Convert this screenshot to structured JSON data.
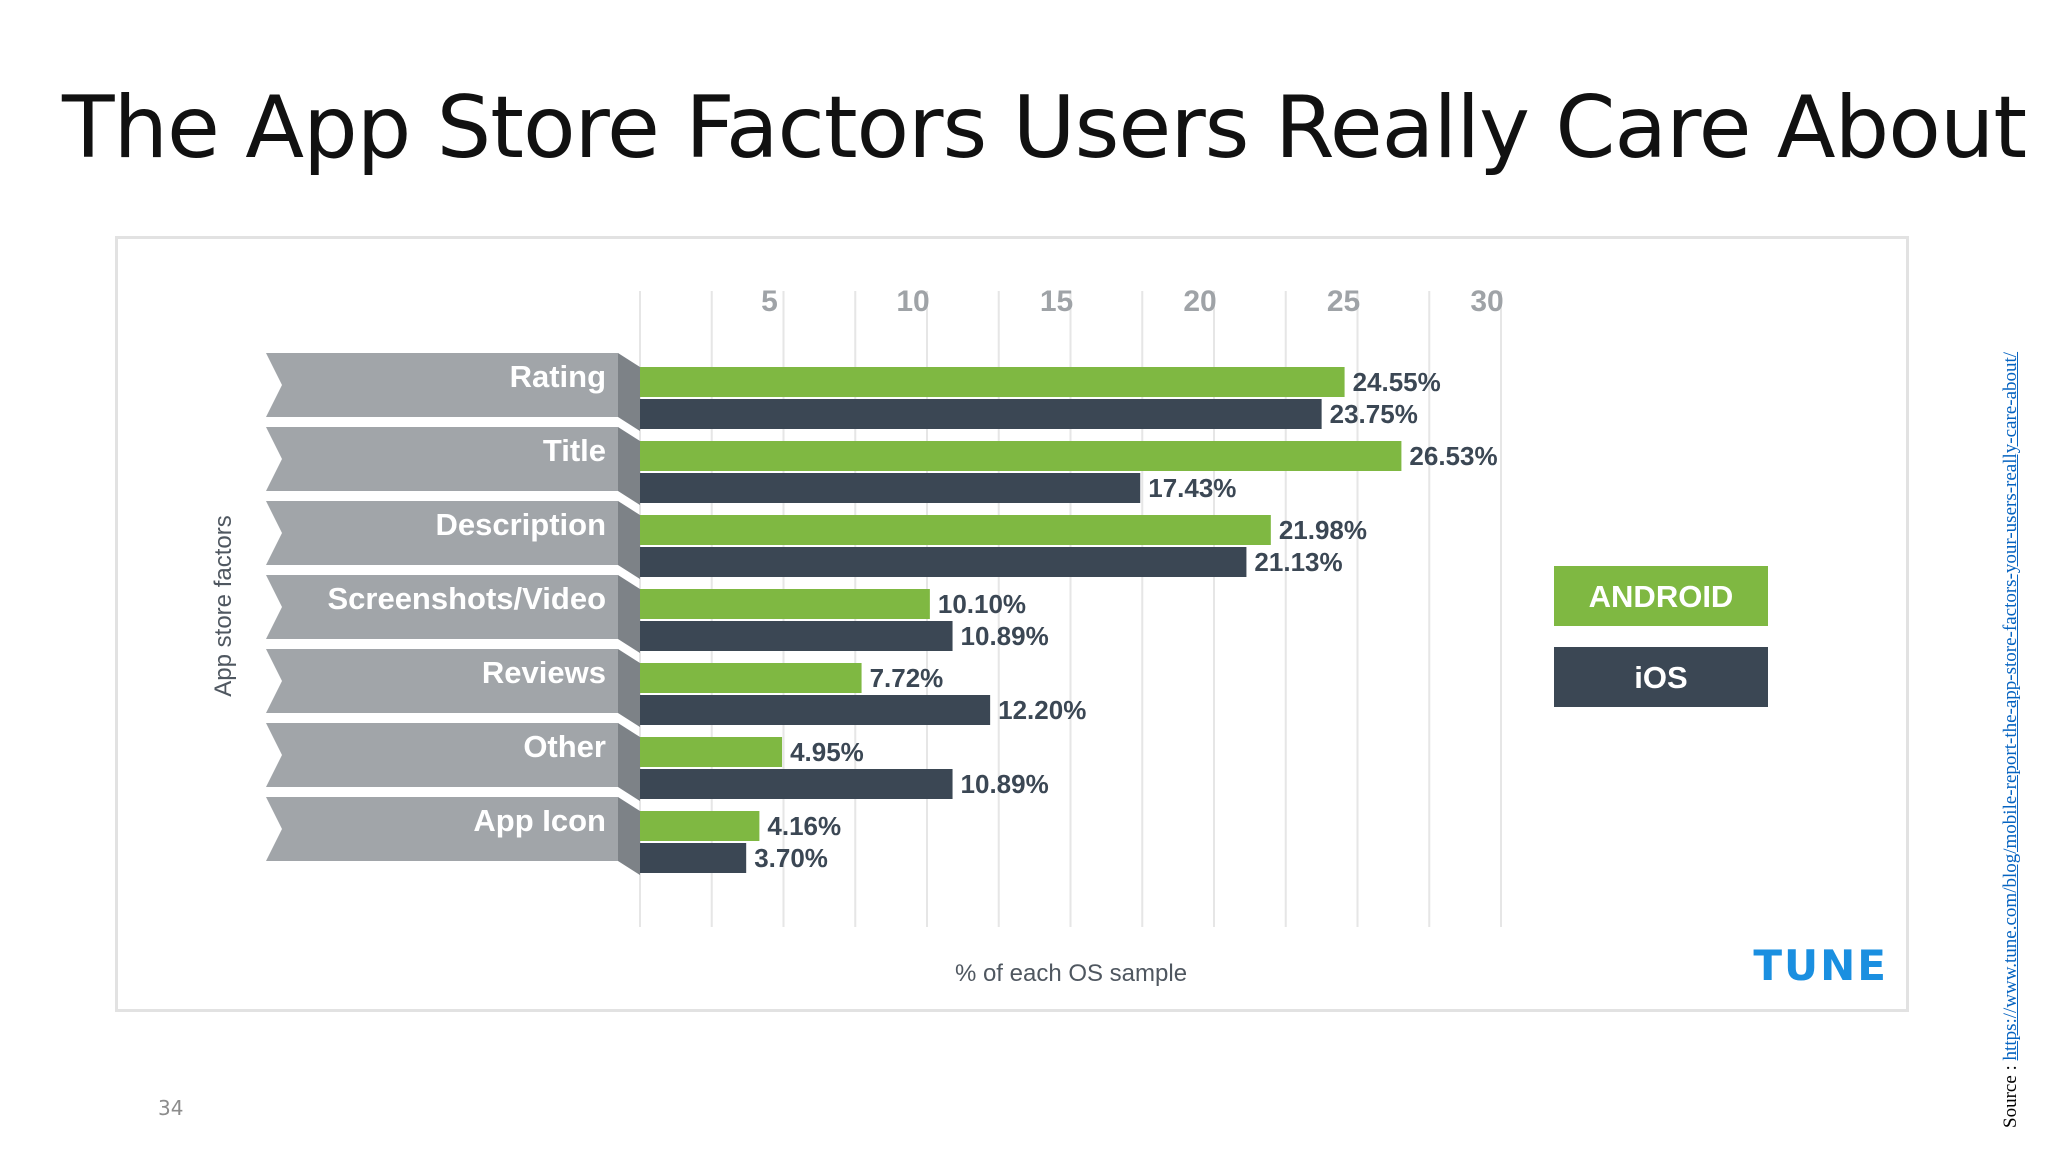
{
  "slide": {
    "title": "The App Store Factors Users Really Care About",
    "page_number": "34",
    "source_prefix": "Source : ",
    "source_url": "https://www.tune.com/blog/mobile-report-the-app-store-factors-your-users-really-care-about/"
  },
  "chart_data": {
    "type": "bar",
    "orientation": "horizontal",
    "title": "",
    "xlabel": "% of each OS sample",
    "ylabel": "App store factors",
    "xlim": [
      0,
      30
    ],
    "xticks": [
      5,
      10,
      15,
      20,
      25,
      30
    ],
    "grid": true,
    "legend_placement": "right",
    "brand": "TUNE",
    "categories": [
      "Rating",
      "Title",
      "Description",
      "Screenshots/Video",
      "Reviews",
      "Other",
      "App Icon"
    ],
    "series": [
      {
        "name": "ANDROID",
        "color": "#7fb842",
        "values": [
          24.55,
          26.53,
          21.98,
          10.1,
          7.72,
          4.95,
          4.16
        ],
        "labels": [
          "24.55%",
          "26.53%",
          "21.98%",
          "10.10%",
          "7.72%",
          "4.95%",
          "4.16%"
        ]
      },
      {
        "name": "iOS",
        "color": "#3b4754",
        "values": [
          23.75,
          17.43,
          21.13,
          10.89,
          12.2,
          10.89,
          3.7
        ],
        "labels": [
          "23.75%",
          "17.43%",
          "21.13%",
          "10.89%",
          "12.20%",
          "10.89%",
          "3.70%"
        ]
      }
    ]
  },
  "colors": {
    "label_band": "#a1a5a9",
    "label_band_fold": "#7d8287",
    "gridline": "#e6e6e6",
    "tick_text": "#9fa3a7",
    "brand": "#1a8fe0"
  }
}
